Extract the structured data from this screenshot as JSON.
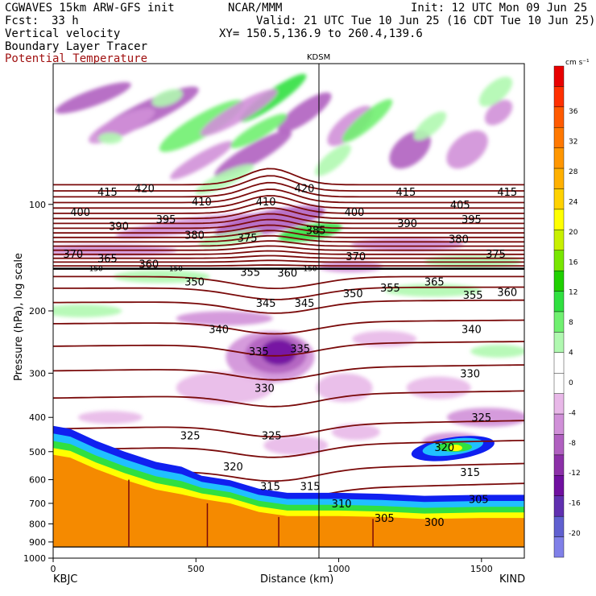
{
  "header": {
    "model": "CGWAVES 15km ARW-GFS init",
    "fcst_label": "Fcst:",
    "fcst_value": "33 h",
    "org": "NCAR/MMM",
    "init": "Init: 12 UTC Mon 09 Jun 25",
    "valid": "Valid: 21 UTC Tue 10 Jun 25 (16 CDT Tue 10 Jun 25)",
    "field1": "Vertical velocity",
    "field2": "Boundary Layer Tracer",
    "field3": "Potential Temperature",
    "xy": "XY= 150.5,136.9 to 260.4,139.6"
  },
  "colors": {
    "theta_contour": "#7a0a0a",
    "terrain": "#f58a00",
    "header_red": "#a01010"
  },
  "chart_data": {
    "type": "heatmap",
    "title": "Vertical velocity",
    "xlabel": "Distance (km)",
    "ylabel": "Pressure (hPa), log scale",
    "xlim": [
      0,
      1650
    ],
    "ylim": [
      1000,
      40
    ],
    "x_ticks": [
      "0",
      "500",
      "1000",
      "1500"
    ],
    "x_tick_values": [
      0,
      500,
      1000,
      1500
    ],
    "y_ticks": [
      "100",
      "200",
      "300",
      "400",
      "500",
      "600",
      "700",
      "800",
      "900",
      "1000"
    ],
    "y_tick_values": [
      100,
      200,
      300,
      400,
      500,
      600,
      700,
      800,
      900,
      1000
    ],
    "station_left": "KBJC",
    "station_right": "KIND",
    "station_mid": "KDSM",
    "station_mid_x": 935,
    "tropopause_label": "150",
    "colorbar": {
      "units": "cm s⁻¹",
      "labels": [
        "36",
        "32",
        "28",
        "24",
        "20",
        "16",
        "12",
        "8",
        "4",
        "0",
        "-4",
        "-8",
        "-12",
        "-16",
        "-20"
      ],
      "colors": [
        "#e80000",
        "#ff3000",
        "#ff5a00",
        "#ff7800",
        "#ff9600",
        "#ffb000",
        "#ffd200",
        "#ffff00",
        "#c8f000",
        "#78e600",
        "#20d000",
        "#30e040",
        "#70f070",
        "#b0f8b0",
        "#ffffff",
        "#ffffff",
        "#e8b8e8",
        "#d090d8",
        "#b060c0",
        "#8c30a8",
        "#7010a0",
        "#6030b0",
        "#6060d0",
        "#8080e8"
      ]
    },
    "theta_labels": [
      {
        "t": "420",
        "x": 320,
        "p": 90
      },
      {
        "t": "415",
        "x": 190,
        "p": 92
      },
      {
        "t": "415",
        "x": 1235,
        "p": 92
      },
      {
        "t": "415",
        "x": 1590,
        "p": 92
      },
      {
        "t": "410",
        "x": 520,
        "p": 98
      },
      {
        "t": "410",
        "x": 745,
        "p": 98
      },
      {
        "t": "420",
        "x": 880,
        "p": 90
      },
      {
        "t": "400",
        "x": 95,
        "p": 105
      },
      {
        "t": "400",
        "x": 1055,
        "p": 105
      },
      {
        "t": "405",
        "x": 1425,
        "p": 100
      },
      {
        "t": "390",
        "x": 230,
        "p": 115
      },
      {
        "t": "395",
        "x": 395,
        "p": 110
      },
      {
        "t": "385",
        "x": 920,
        "p": 118
      },
      {
        "t": "390",
        "x": 1240,
        "p": 113
      },
      {
        "t": "395",
        "x": 1465,
        "p": 110
      },
      {
        "t": "380",
        "x": 495,
        "p": 122
      },
      {
        "t": "375",
        "x": 680,
        "p": 124
      },
      {
        "t": "380",
        "x": 1420,
        "p": 125
      },
      {
        "t": "370",
        "x": 70,
        "p": 138
      },
      {
        "t": "365",
        "x": 190,
        "p": 142
      },
      {
        "t": "360",
        "x": 335,
        "p": 147
      },
      {
        "t": "370",
        "x": 1060,
        "p": 140
      },
      {
        "t": "375",
        "x": 1550,
        "p": 138
      },
      {
        "t": "350",
        "x": 495,
        "p": 165
      },
      {
        "t": "355",
        "x": 690,
        "p": 155
      },
      {
        "t": "360",
        "x": 820,
        "p": 156
      },
      {
        "t": "350",
        "x": 1050,
        "p": 178
      },
      {
        "t": "355",
        "x": 1180,
        "p": 172
      },
      {
        "t": "365",
        "x": 1335,
        "p": 165
      },
      {
        "t": "355",
        "x": 1470,
        "p": 180
      },
      {
        "t": "360",
        "x": 1590,
        "p": 177
      },
      {
        "t": "345",
        "x": 745,
        "p": 190
      },
      {
        "t": "345",
        "x": 880,
        "p": 190
      },
      {
        "t": "340",
        "x": 580,
        "p": 225
      },
      {
        "t": "340",
        "x": 1465,
        "p": 225
      },
      {
        "t": "335",
        "x": 720,
        "p": 260
      },
      {
        "t": "335",
        "x": 865,
        "p": 255
      },
      {
        "t": "330",
        "x": 740,
        "p": 330
      },
      {
        "t": "330",
        "x": 1460,
        "p": 300
      },
      {
        "t": "325",
        "x": 480,
        "p": 450
      },
      {
        "t": "325",
        "x": 765,
        "p": 450
      },
      {
        "t": "325",
        "x": 1500,
        "p": 400
      },
      {
        "t": "320",
        "x": 630,
        "p": 550
      },
      {
        "t": "320",
        "x": 1370,
        "p": 485
      },
      {
        "t": "315",
        "x": 760,
        "p": 625
      },
      {
        "t": "315",
        "x": 900,
        "p": 625
      },
      {
        "t": "315",
        "x": 1460,
        "p": 570
      },
      {
        "t": "310",
        "x": 1010,
        "p": 700
      },
      {
        "t": "305",
        "x": 1160,
        "p": 770
      },
      {
        "t": "305",
        "x": 1490,
        "p": 680
      },
      {
        "t": "300",
        "x": 1335,
        "p": 790
      }
    ]
  }
}
